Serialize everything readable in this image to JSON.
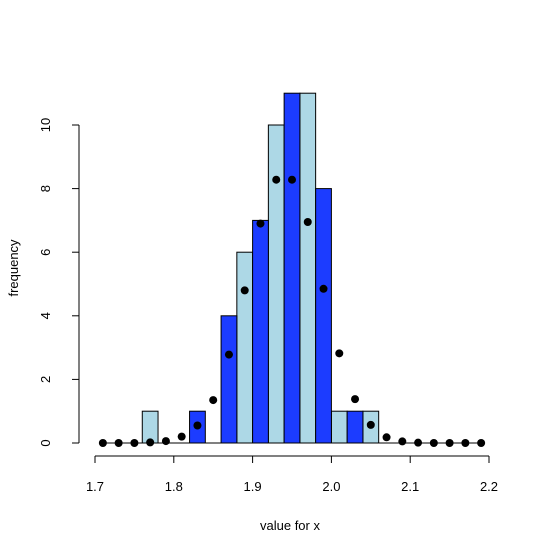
{
  "chart_data": {
    "type": "bar",
    "xlabel": "value for x",
    "ylabel": "frequency",
    "xlim": [
      1.7,
      2.2
    ],
    "ylim": [
      0,
      11
    ],
    "x_ticks": [
      1.7,
      1.8,
      1.9,
      2.0,
      2.1,
      2.2
    ],
    "x_tick_labels": [
      "1.7",
      "1.8",
      "1.9",
      "2.0",
      "2.1",
      "2.2"
    ],
    "y_ticks": [
      0,
      2,
      4,
      6,
      8,
      10
    ],
    "y_tick_labels": [
      "0",
      "2",
      "4",
      "6",
      "8",
      "10"
    ],
    "colors": {
      "light": "#add8e6",
      "dark": "#1c3cff"
    },
    "series": [
      {
        "color": "light",
        "bins": [
          {
            "x0": 1.76,
            "x1": 1.78,
            "value": 1
          },
          {
            "x0": 1.88,
            "x1": 1.9,
            "value": 6
          },
          {
            "x0": 1.92,
            "x1": 1.94,
            "value": 10
          },
          {
            "x0": 1.96,
            "x1": 1.98,
            "value": 11
          },
          {
            "x0": 2.0,
            "x1": 2.02,
            "value": 1
          },
          {
            "x0": 2.04,
            "x1": 2.06,
            "value": 1
          }
        ]
      },
      {
        "color": "dark",
        "bins": [
          {
            "x0": 1.82,
            "x1": 1.84,
            "value": 1
          },
          {
            "x0": 1.86,
            "x1": 1.88,
            "value": 4
          },
          {
            "x0": 1.9,
            "x1": 1.92,
            "value": 7
          },
          {
            "x0": 1.94,
            "x1": 1.96,
            "value": 11
          },
          {
            "x0": 1.98,
            "x1": 2.0,
            "value": 8
          },
          {
            "x0": 2.02,
            "x1": 2.04,
            "value": 1
          }
        ]
      }
    ],
    "points": {
      "x": [
        1.71,
        1.73,
        1.75,
        1.77,
        1.79,
        1.81,
        1.83,
        1.85,
        1.87,
        1.89,
        1.91,
        1.93,
        1.95,
        1.97,
        1.99,
        2.01,
        2.03,
        2.05,
        2.07,
        2.09,
        2.11,
        2.13,
        2.15,
        2.17,
        2.19
      ],
      "y": [
        0,
        0,
        0,
        0.02,
        0.06,
        0.2,
        0.55,
        1.35,
        2.78,
        4.8,
        6.9,
        8.28,
        8.28,
        6.95,
        4.85,
        2.82,
        1.38,
        0.57,
        0.18,
        0.05,
        0.01,
        0,
        0,
        0,
        0
      ]
    }
  }
}
